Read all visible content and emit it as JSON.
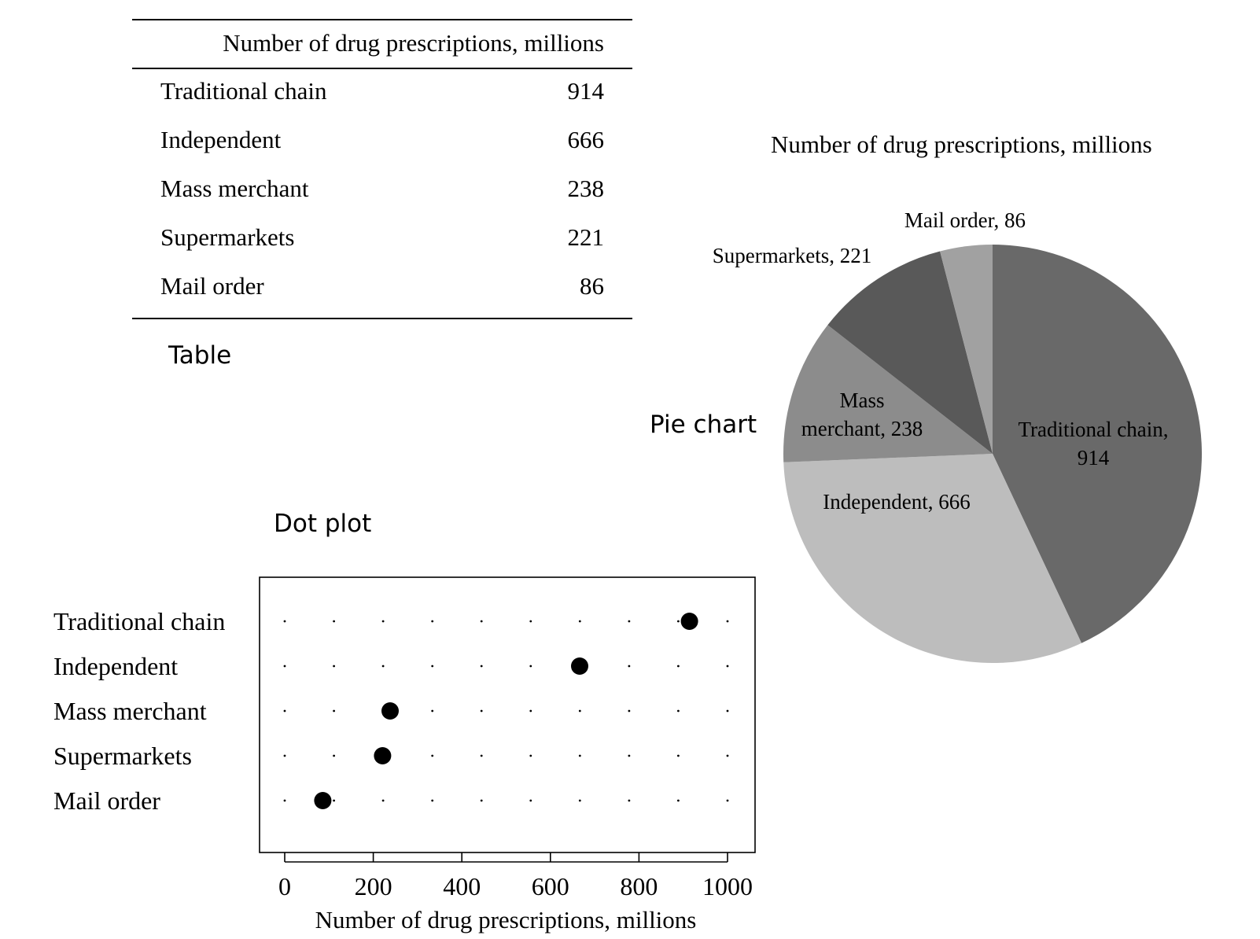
{
  "table": {
    "header": "Number of drug prescriptions, millions",
    "rows": [
      {
        "label": "Traditional chain",
        "value": "914"
      },
      {
        "label": "Independent",
        "value": "666"
      },
      {
        "label": "Mass merchant",
        "value": "238"
      },
      {
        "label": "Supermarkets",
        "value": "221"
      },
      {
        "label": "Mail order",
        "value": "86"
      }
    ],
    "caption": "Table"
  },
  "pie_caption": "Pie chart",
  "dot_caption": "Dot plot",
  "chart_data": [
    {
      "type": "pie",
      "title": "Number of drug prescriptions, millions",
      "categories": [
        "Traditional chain",
        "Independent",
        "Mass merchant",
        "Supermarkets",
        "Mail order"
      ],
      "values": [
        914,
        666,
        238,
        221,
        86
      ],
      "slice_labels": [
        "Traditional chain,\n914",
        "Independent, 666",
        "Mass\nmerchant, 238",
        "Supermarkets, 221",
        "Mail order, 86"
      ],
      "colors": [
        "#696969",
        "#bdbdbd",
        "#8c8c8c",
        "#595959",
        "#a1a1a1"
      ]
    },
    {
      "type": "scatter",
      "title": "",
      "xlabel": "Number of drug prescriptions, millions",
      "ylabel": "",
      "categories": [
        "Traditional chain",
        "Independent",
        "Mass merchant",
        "Supermarkets",
        "Mail order"
      ],
      "values": [
        914,
        666,
        238,
        221,
        86
      ],
      "xlim": [
        0,
        1000
      ],
      "xticks": [
        0,
        200,
        400,
        600,
        800,
        1000
      ],
      "grid": "dotted"
    }
  ]
}
